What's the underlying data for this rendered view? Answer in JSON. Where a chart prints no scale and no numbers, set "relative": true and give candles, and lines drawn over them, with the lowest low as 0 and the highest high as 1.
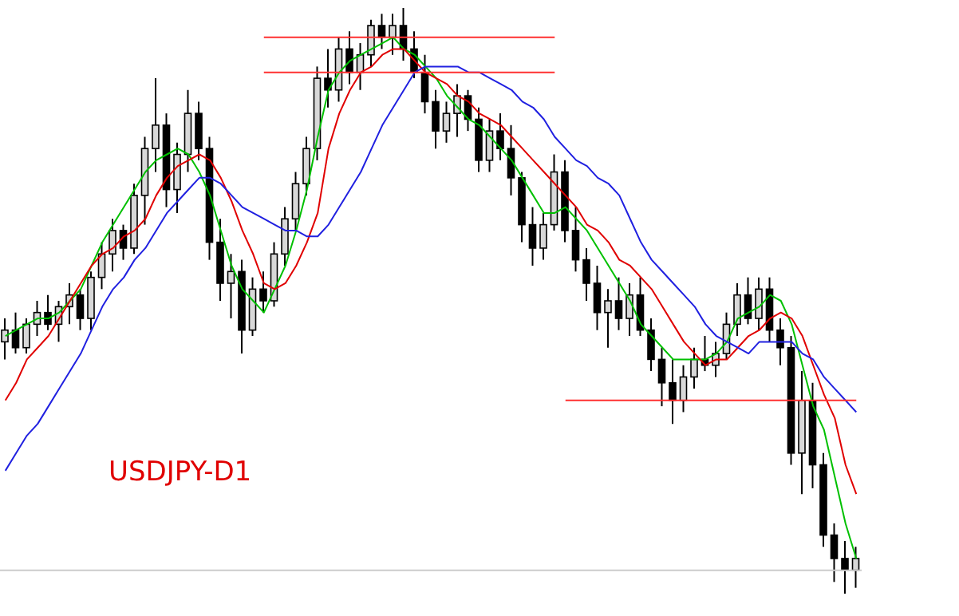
{
  "chart_data": {
    "type": "candlestick",
    "relative": true,
    "categories": [
      null,
      null,
      null,
      null,
      null,
      null,
      null,
      null,
      null,
      null,
      null,
      null,
      null,
      null,
      null,
      null,
      null,
      null,
      null,
      null,
      null,
      null,
      null,
      null,
      null,
      null,
      null,
      null,
      null,
      null,
      null,
      null,
      null,
      null,
      null,
      null,
      null,
      null,
      null,
      null,
      null,
      null,
      null,
      null,
      null,
      null,
      null,
      null,
      null,
      null,
      null,
      null,
      null,
      null,
      null,
      null,
      null,
      null,
      null,
      null,
      null,
      null,
      null,
      null,
      null,
      null,
      null,
      null,
      null,
      null,
      null,
      null,
      null,
      null,
      null,
      null,
      null,
      null,
      null,
      null
    ],
    "ohlc": [
      [
        0.43,
        0.47,
        0.4,
        0.45
      ],
      [
        0.45,
        0.48,
        0.41,
        0.42
      ],
      [
        0.42,
        0.47,
        0.41,
        0.46
      ],
      [
        0.46,
        0.5,
        0.44,
        0.48
      ],
      [
        0.48,
        0.51,
        0.45,
        0.46
      ],
      [
        0.46,
        0.5,
        0.43,
        0.49
      ],
      [
        0.49,
        0.53,
        0.46,
        0.51
      ],
      [
        0.51,
        0.52,
        0.45,
        0.47
      ],
      [
        0.47,
        0.55,
        0.45,
        0.54
      ],
      [
        0.54,
        0.6,
        0.52,
        0.58
      ],
      [
        0.58,
        0.64,
        0.55,
        0.62
      ],
      [
        0.62,
        0.63,
        0.57,
        0.59
      ],
      [
        0.59,
        0.7,
        0.58,
        0.68
      ],
      [
        0.68,
        0.78,
        0.63,
        0.76
      ],
      [
        0.76,
        0.88,
        0.72,
        0.8
      ],
      [
        0.8,
        0.82,
        0.66,
        0.69
      ],
      [
        0.69,
        0.77,
        0.65,
        0.75
      ],
      [
        0.75,
        0.86,
        0.72,
        0.82
      ],
      [
        0.82,
        0.84,
        0.74,
        0.76
      ],
      [
        0.76,
        0.78,
        0.57,
        0.6
      ],
      [
        0.6,
        0.64,
        0.5,
        0.53
      ],
      [
        0.53,
        0.58,
        0.47,
        0.55
      ],
      [
        0.55,
        0.57,
        0.41,
        0.45
      ],
      [
        0.45,
        0.54,
        0.44,
        0.52
      ],
      [
        0.52,
        0.55,
        0.48,
        0.5
      ],
      [
        0.5,
        0.6,
        0.49,
        0.58
      ],
      [
        0.58,
        0.66,
        0.56,
        0.64
      ],
      [
        0.64,
        0.72,
        0.62,
        0.7
      ],
      [
        0.7,
        0.78,
        0.68,
        0.76
      ],
      [
        0.76,
        0.9,
        0.74,
        0.88
      ],
      [
        0.88,
        0.93,
        0.83,
        0.86
      ],
      [
        0.86,
        0.95,
        0.84,
        0.93
      ],
      [
        0.93,
        0.96,
        0.87,
        0.89
      ],
      [
        0.89,
        0.94,
        0.86,
        0.92
      ],
      [
        0.92,
        0.98,
        0.9,
        0.97
      ],
      [
        0.97,
        0.99,
        0.93,
        0.95
      ],
      [
        0.95,
        0.99,
        0.92,
        0.97
      ],
      [
        0.97,
        1.0,
        0.91,
        0.93
      ],
      [
        0.93,
        0.96,
        0.88,
        0.89
      ],
      [
        0.89,
        0.92,
        0.82,
        0.84
      ],
      [
        0.84,
        0.86,
        0.76,
        0.79
      ],
      [
        0.79,
        0.84,
        0.77,
        0.82
      ],
      [
        0.82,
        0.87,
        0.78,
        0.85
      ],
      [
        0.85,
        0.86,
        0.79,
        0.81
      ],
      [
        0.81,
        0.83,
        0.72,
        0.74
      ],
      [
        0.74,
        0.81,
        0.72,
        0.79
      ],
      [
        0.79,
        0.82,
        0.74,
        0.76
      ],
      [
        0.76,
        0.8,
        0.68,
        0.71
      ],
      [
        0.71,
        0.72,
        0.6,
        0.63
      ],
      [
        0.63,
        0.66,
        0.56,
        0.59
      ],
      [
        0.59,
        0.65,
        0.57,
        0.63
      ],
      [
        0.63,
        0.75,
        0.62,
        0.72
      ],
      [
        0.72,
        0.74,
        0.6,
        0.62
      ],
      [
        0.62,
        0.66,
        0.55,
        0.57
      ],
      [
        0.57,
        0.59,
        0.5,
        0.53
      ],
      [
        0.53,
        0.56,
        0.45,
        0.48
      ],
      [
        0.48,
        0.52,
        0.42,
        0.5
      ],
      [
        0.5,
        0.54,
        0.45,
        0.47
      ],
      [
        0.47,
        0.53,
        0.44,
        0.51
      ],
      [
        0.51,
        0.54,
        0.44,
        0.45
      ],
      [
        0.45,
        0.47,
        0.38,
        0.4
      ],
      [
        0.4,
        0.42,
        0.32,
        0.36
      ],
      [
        0.36,
        0.4,
        0.29,
        0.33
      ],
      [
        0.33,
        0.39,
        0.31,
        0.37
      ],
      [
        0.37,
        0.42,
        0.35,
        0.4
      ],
      [
        0.4,
        0.44,
        0.38,
        0.39
      ],
      [
        0.39,
        0.43,
        0.37,
        0.41
      ],
      [
        0.41,
        0.48,
        0.4,
        0.46
      ],
      [
        0.46,
        0.53,
        0.44,
        0.51
      ],
      [
        0.51,
        0.54,
        0.46,
        0.47
      ],
      [
        0.47,
        0.54,
        0.45,
        0.52
      ],
      [
        0.52,
        0.54,
        0.43,
        0.45
      ],
      [
        0.45,
        0.47,
        0.39,
        0.42
      ],
      [
        0.42,
        0.44,
        0.22,
        0.24
      ],
      [
        0.24,
        0.38,
        0.17,
        0.33
      ],
      [
        0.33,
        0.36,
        0.18,
        0.22
      ],
      [
        0.22,
        0.24,
        0.08,
        0.1
      ],
      [
        0.1,
        0.12,
        0.02,
        0.06
      ],
      [
        0.06,
        0.09,
        0.0,
        0.04
      ],
      [
        0.04,
        0.08,
        0.01,
        0.06
      ]
    ],
    "series": [
      {
        "type": "line",
        "color": "#00c000",
        "values": [
          0.44,
          0.45,
          0.46,
          0.47,
          0.47,
          0.48,
          0.5,
          0.52,
          0.56,
          0.6,
          0.63,
          0.66,
          0.69,
          0.72,
          0.74,
          0.75,
          0.76,
          0.75,
          0.72,
          0.68,
          0.62,
          0.56,
          0.52,
          0.5,
          0.48,
          0.52,
          0.56,
          0.62,
          0.69,
          0.78,
          0.86,
          0.89,
          0.91,
          0.92,
          0.93,
          0.94,
          0.95,
          0.93,
          0.92,
          0.9,
          0.88,
          0.85,
          0.83,
          0.81,
          0.8,
          0.78,
          0.76,
          0.74,
          0.71,
          0.68,
          0.65,
          0.65,
          0.66,
          0.64,
          0.62,
          0.59,
          0.56,
          0.53,
          0.5,
          0.46,
          0.44,
          0.42,
          0.4,
          0.4,
          0.4,
          0.4,
          0.41,
          0.43,
          0.47,
          0.48,
          0.49,
          0.51,
          0.5,
          0.46,
          0.39,
          0.32,
          0.28,
          0.2,
          0.12,
          0.06
        ]
      },
      {
        "type": "line",
        "color": "#e00000",
        "values": [
          0.33,
          0.36,
          0.4,
          0.42,
          0.44,
          0.47,
          0.5,
          0.53,
          0.56,
          0.58,
          0.59,
          0.61,
          0.62,
          0.64,
          0.68,
          0.71,
          0.73,
          0.74,
          0.75,
          0.74,
          0.71,
          0.67,
          0.62,
          0.58,
          0.53,
          0.52,
          0.53,
          0.56,
          0.6,
          0.65,
          0.76,
          0.82,
          0.86,
          0.89,
          0.9,
          0.92,
          0.93,
          0.93,
          0.91,
          0.89,
          0.88,
          0.87,
          0.85,
          0.84,
          0.82,
          0.81,
          0.8,
          0.78,
          0.76,
          0.74,
          0.72,
          0.7,
          0.68,
          0.66,
          0.63,
          0.62,
          0.6,
          0.57,
          0.56,
          0.54,
          0.52,
          0.49,
          0.46,
          0.43,
          0.41,
          0.39,
          0.4,
          0.4,
          0.42,
          0.44,
          0.45,
          0.47,
          0.48,
          0.47,
          0.44,
          0.39,
          0.34,
          0.3,
          0.22,
          0.17
        ]
      },
      {
        "type": "line",
        "color": "#2020e0",
        "values": [
          0.21,
          0.24,
          0.27,
          0.29,
          0.32,
          0.35,
          0.38,
          0.41,
          0.45,
          0.49,
          0.52,
          0.54,
          0.57,
          0.59,
          0.62,
          0.65,
          0.67,
          0.69,
          0.71,
          0.71,
          0.7,
          0.68,
          0.66,
          0.65,
          0.64,
          0.63,
          0.62,
          0.62,
          0.61,
          0.61,
          0.63,
          0.66,
          0.69,
          0.72,
          0.76,
          0.8,
          0.83,
          0.86,
          0.89,
          0.9,
          0.9,
          0.9,
          0.9,
          0.89,
          0.89,
          0.88,
          0.87,
          0.86,
          0.84,
          0.83,
          0.81,
          0.78,
          0.76,
          0.74,
          0.73,
          0.71,
          0.7,
          0.68,
          0.64,
          0.6,
          0.57,
          0.55,
          0.53,
          0.51,
          0.49,
          0.46,
          0.44,
          0.43,
          0.42,
          0.41,
          0.43,
          0.43,
          0.43,
          0.43,
          0.41,
          0.4,
          0.37,
          0.35,
          0.33,
          0.31
        ]
      },
      {
        "type": "line",
        "color": "#ff3030",
        "values": [
          null,
          null,
          null,
          null,
          null,
          null,
          null,
          null,
          null,
          null,
          null,
          null,
          null,
          null,
          null,
          null,
          null,
          null,
          null,
          null,
          null,
          null,
          null,
          null,
          0.95,
          0.95,
          0.95,
          0.95,
          0.95,
          0.95,
          0.95,
          0.95,
          0.95,
          0.95,
          0.95,
          0.95,
          0.95,
          0.95,
          0.95,
          0.95,
          0.95,
          0.95,
          0.95,
          0.95,
          0.95,
          0.95,
          0.95,
          0.95,
          0.95,
          0.95,
          0.95,
          0.95,
          null,
          null,
          null,
          null,
          null,
          null,
          null,
          null,
          null,
          null,
          null,
          null,
          null,
          null,
          null,
          null,
          null,
          null,
          null,
          null,
          null,
          null,
          null,
          null,
          null,
          null,
          null,
          null
        ]
      },
      {
        "type": "line",
        "color": "#ff3030",
        "values": [
          null,
          null,
          null,
          null,
          null,
          null,
          null,
          null,
          null,
          null,
          null,
          null,
          null,
          null,
          null,
          null,
          null,
          null,
          null,
          null,
          null,
          null,
          null,
          null,
          0.89,
          0.89,
          0.89,
          0.89,
          0.89,
          0.89,
          0.89,
          0.89,
          0.89,
          0.89,
          0.89,
          0.89,
          0.89,
          0.89,
          0.89,
          0.89,
          0.89,
          0.89,
          0.89,
          0.89,
          0.89,
          0.89,
          0.89,
          0.89,
          0.89,
          0.89,
          0.89,
          0.89,
          null,
          null,
          null,
          null,
          null,
          null,
          null,
          null,
          null,
          null,
          null,
          null,
          null,
          null,
          null,
          null,
          null,
          null,
          null,
          null,
          null,
          null,
          null,
          null,
          null,
          null,
          null,
          null
        ]
      },
      {
        "type": "line",
        "color": "#ff3030",
        "values": [
          null,
          null,
          null,
          null,
          null,
          null,
          null,
          null,
          null,
          null,
          null,
          null,
          null,
          null,
          null,
          null,
          null,
          null,
          null,
          null,
          null,
          null,
          null,
          null,
          null,
          null,
          null,
          null,
          null,
          null,
          null,
          null,
          null,
          null,
          null,
          null,
          null,
          null,
          null,
          null,
          null,
          null,
          null,
          null,
          null,
          null,
          null,
          null,
          null,
          null,
          null,
          null,
          0.33,
          0.33,
          0.33,
          0.33,
          0.33,
          0.33,
          0.33,
          0.33,
          0.33,
          0.33,
          0.33,
          0.33,
          0.33,
          0.33,
          0.33,
          0.33,
          0.33,
          0.33,
          0.33,
          0.33,
          0.33,
          0.33,
          0.33,
          0.33,
          0.33,
          0.33,
          0.33,
          0.33
        ]
      }
    ],
    "ref_lines": [
      {
        "axis": "y",
        "value": 0.04,
        "color": "#cccccc"
      }
    ],
    "annotations": [
      "USDJPY-D1"
    ],
    "marker": "none",
    "line_style": "solid"
  }
}
